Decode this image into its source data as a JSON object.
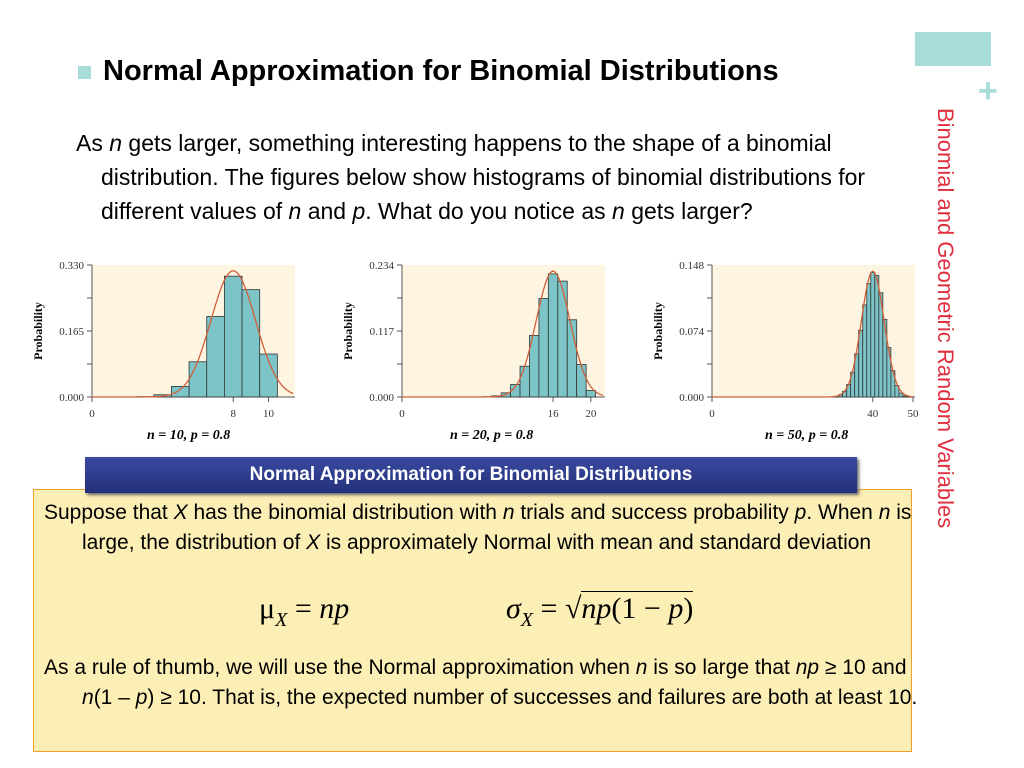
{
  "title": "Normal Approximation for Binomial Distributions",
  "side_title": "Binomial and Geometric Random Variables",
  "intro": {
    "p1": "As ",
    "n1": "n",
    "p2": " gets larger, something interesting happens to the shape of a binomial distribution.  The figures below show histograms of binomial distributions for different values of ",
    "n2": "n",
    "p3": " and ",
    "p4": "p",
    "p5": ". What do you notice as ",
    "n3": "n",
    "p6": " gets larger?"
  },
  "chart_data": [
    {
      "type": "bar",
      "ylabel": "Probability",
      "caption": "n = 10, p = 0.8",
      "ylim": [
        0,
        0.33
      ],
      "yticks": [
        "0.330",
        "0.165",
        "0.000"
      ],
      "xticks": [
        "0",
        "8",
        "10"
      ],
      "xticks_values": [
        0,
        8,
        10
      ],
      "xlim": [
        0,
        11.5
      ],
      "bar_color": "#7cc4c8",
      "curve_color": "#d0603a",
      "x": [
        0,
        1,
        2,
        3,
        4,
        5,
        6,
        7,
        8,
        9,
        10
      ],
      "values": [
        0,
        0,
        0.0001,
        0.0008,
        0.0055,
        0.0264,
        0.0881,
        0.2013,
        0.302,
        0.2684,
        0.1074
      ],
      "mean": 8,
      "sd": 1.265
    },
    {
      "type": "bar",
      "ylabel": "Probability",
      "caption": "n = 20, p = 0.8",
      "ylim": [
        0,
        0.234
      ],
      "yticks": [
        "0.234",
        "0.117",
        "0.000"
      ],
      "xticks": [
        "0",
        "16",
        "20"
      ],
      "xticks_values": [
        0,
        16,
        20
      ],
      "xlim": [
        0,
        21.5
      ],
      "bar_color": "#7cc4c8",
      "curve_color": "#d0603a",
      "x": [
        8,
        9,
        10,
        11,
        12,
        13,
        14,
        15,
        16,
        17,
        18,
        19,
        20
      ],
      "values": [
        0.0001,
        0.0005,
        0.002,
        0.0074,
        0.0222,
        0.0545,
        0.1091,
        0.1746,
        0.2182,
        0.2054,
        0.1369,
        0.0576,
        0.0115
      ],
      "mean": 16,
      "sd": 1.789
    },
    {
      "type": "bar",
      "ylabel": "Probability",
      "caption": "n = 50, p = 0.8",
      "ylim": [
        0,
        0.148
      ],
      "yticks": [
        "0.148",
        "0.074",
        "0.000"
      ],
      "xticks": [
        "0",
        "40",
        "50"
      ],
      "xticks_values": [
        0,
        40,
        50
      ],
      "xlim": [
        0,
        50.5
      ],
      "bar_color": "#7cc4c8",
      "curve_color": "#d0603a",
      "x": [
        30,
        31,
        32,
        33,
        34,
        35,
        36,
        37,
        38,
        39,
        40,
        41,
        42,
        43,
        44,
        45,
        46,
        47,
        48,
        49,
        50
      ],
      "values": [
        0.0003,
        0.0009,
        0.0026,
        0.0064,
        0.0142,
        0.0279,
        0.0484,
        0.0749,
        0.1033,
        0.1271,
        0.1398,
        0.1364,
        0.1169,
        0.087,
        0.0554,
        0.0295,
        0.0128,
        0.0044,
        0.0011,
        0.0002,
        0
      ],
      "mean": 40,
      "sd": 2.828
    }
  ],
  "box": {
    "header": "Normal Approximation for Binomial Distributions",
    "para1": {
      "a": "Suppose that ",
      "X": "X",
      "b": " has the binomial distribution with ",
      "n": "n",
      "c": " trials and success probability ",
      "p": "p",
      "d": ". When ",
      "n2": "n",
      "e": " is large, the distribution of ",
      "X2": "X",
      "f": " is approximately Normal with mean and standard deviation"
    },
    "mu": {
      "sym": "μ",
      "sub": "X",
      "eq": " = ",
      "rhs": "np"
    },
    "sigma": {
      "sym": "σ",
      "sub": "X",
      "eq": " = ",
      "rhs1": "np",
      "rhs2": "(1 − ",
      "rhs3": "p",
      ")": ")",
      "close": ")"
    },
    "para2": {
      "a": "As a rule of thumb, we will use the Normal approximation when ",
      "n": "n",
      "b": " is so large that ",
      "np": "np",
      "c": " ≥ 10 and ",
      "n2": "n",
      "d": "(1 – ",
      "p": "p",
      "e": ") ≥ 10.  That is, the expected number of successes and failures are both at least 10."
    }
  }
}
